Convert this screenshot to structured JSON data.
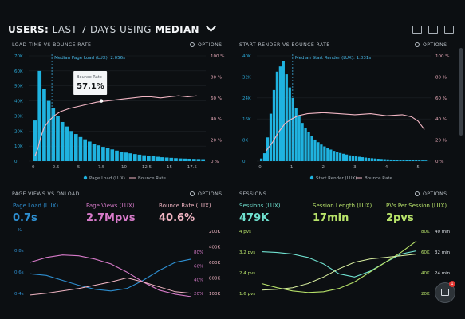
{
  "header": {
    "part1": "USERS:",
    "part2": "LAST 7 DAYS",
    "part3": "USING",
    "part4": "MEDIAN"
  },
  "panels": {
    "load_time": {
      "title": "LOAD TIME VS BOUNCE RATE",
      "options": "OPTIONS",
      "median_label": "Median Page Load (LUX): 2.056s",
      "tooltip_label": "Bounce Rate",
      "tooltip_value": "57.1%",
      "legend_1": "Page Load (LUX)",
      "legend_2": "Bounce Rate"
    },
    "start_render": {
      "title": "START RENDER VS BOUNCE RATE",
      "options": "OPTIONS",
      "median_label": "Median Start Render (LUX): 1.031s",
      "legend_1": "Start Render (LUX)",
      "legend_2": "Bounce Rate"
    },
    "page_views": {
      "title": "PAGE VIEWS VS ONLOAD",
      "options": "OPTIONS",
      "m1_label": "Page Load (LUX)",
      "m1_value": "0.7s",
      "m2_label": "Page Views (LUX)",
      "m2_value": "2.7Mpvs",
      "m3_label": "Bounce Rate (LUX)",
      "m3_value": "40.6%"
    },
    "sessions": {
      "title": "SESSIONS",
      "options": "OPTIONS",
      "m1_label": "Sessions (LUX)",
      "m1_value": "479K",
      "m2_label": "Session Length (LUX)",
      "m2_value": "17min",
      "m3_label": "PVs Per Session (LUX)",
      "m3_value": "2pvs"
    }
  },
  "colors": {
    "bar": "#1fb3e0",
    "bounce": "#f2b6c4",
    "pv_blue": "#2e8fd1",
    "pv_pink": "#d77ac9",
    "s_green": "#b8e36a",
    "s_teal": "#6fe0cf"
  },
  "chart_data": [
    {
      "type": "bar",
      "name": "load-time-vs-bounce-rate",
      "x_ticks": [
        "0",
        "2.5",
        "5",
        "7.5",
        "10",
        "12.5",
        "15",
        "17.5"
      ],
      "y_left_ticks": [
        "0",
        "10K",
        "20K",
        "30K",
        "40K",
        "50K",
        "60K",
        "70K"
      ],
      "y_right_ticks": [
        "0 %",
        "20 %",
        "40 %",
        "60 %",
        "80 %",
        "100 %"
      ],
      "ylim_left": [
        0,
        70000
      ],
      "ylim_right": [
        0,
        100
      ],
      "xlim": [
        -0.5,
        19
      ],
      "bar_x_start": 0,
      "bar_x_step": 0.5,
      "bar_values": [
        27000,
        60000,
        48000,
        40000,
        35000,
        30000,
        26000,
        23000,
        20000,
        18000,
        16000,
        14500,
        13000,
        11500,
        10500,
        9500,
        8500,
        7800,
        7000,
        6300,
        5700,
        5200,
        4700,
        4300,
        3900,
        3500,
        3200,
        2900,
        2600,
        2400,
        2200,
        2000,
        1800,
        1700,
        1600,
        1500,
        1400,
        1300
      ],
      "bounce_x": [
        0.2,
        0.5,
        0.8,
        1.2,
        1.7,
        2.3,
        3,
        4,
        5,
        6,
        7,
        8,
        9,
        10,
        11,
        12,
        13,
        14,
        15,
        16,
        17,
        18
      ],
      "bounce_y": [
        5,
        12,
        22,
        32,
        38,
        43,
        47,
        50,
        52,
        54,
        56,
        57,
        58,
        59,
        60,
        61,
        61,
        60,
        61,
        62,
        61,
        62
      ],
      "median_x": 2.056
    },
    {
      "type": "bar",
      "name": "start-render-vs-bounce-rate",
      "x_ticks": [
        "0",
        "1",
        "2",
        "3",
        "4",
        "5"
      ],
      "y_left_ticks": [
        "0",
        "8K",
        "16K",
        "24K",
        "32K",
        "40K"
      ],
      "y_right_ticks": [
        "0 %",
        "20 %",
        "40 %",
        "60 %",
        "80 %",
        "100 %"
      ],
      "ylim_left": [
        0,
        40000
      ],
      "ylim_right": [
        0,
        100
      ],
      "xlim": [
        -0.1,
        5.4
      ],
      "bar_x_start": 0,
      "bar_x_step": 0.1,
      "bar_values": [
        1000,
        3000,
        9000,
        18000,
        27000,
        34000,
        36000,
        38000,
        33000,
        28000,
        24000,
        20000,
        17000,
        14500,
        12500,
        11000,
        9500,
        8200,
        7200,
        6300,
        5600,
        5000,
        4400,
        3900,
        3500,
        3100,
        2800,
        2500,
        2200,
        2000,
        1800,
        1650,
        1500,
        1350,
        1200,
        1100,
        1000,
        900,
        820,
        750,
        680,
        620,
        560,
        520,
        480,
        440,
        400,
        370,
        340,
        310,
        280,
        260,
        240
      ],
      "bounce_x": [
        0.2,
        0.4,
        0.6,
        0.8,
        1.0,
        1.2,
        1.5,
        2,
        2.5,
        3,
        3.5,
        4,
        4.5,
        4.8,
        5.0,
        5.2
      ],
      "bounce_y": [
        10,
        18,
        28,
        36,
        40,
        43,
        45,
        46,
        45,
        44,
        45,
        43,
        44,
        42,
        38,
        30
      ],
      "median_x": 1.031
    },
    {
      "type": "line",
      "name": "page-views-vs-onload",
      "y_left_ticks": [
        "0.4s",
        "0.6s",
        "0.8s"
      ],
      "y_left_unit": "%",
      "y_right_pct_ticks": [
        "20%",
        "40%",
        "60%",
        "80%"
      ],
      "y_right_k_ticks": [
        "200K",
        "400K",
        "600K",
        "800K",
        "100K"
      ],
      "series": [
        {
          "name": "Page Load (LUX)",
          "x": [
            0,
            1,
            2,
            3,
            4,
            5,
            6,
            7,
            8,
            9,
            10
          ],
          "y": [
            30,
            28,
            22,
            16,
            11,
            9,
            12,
            22,
            34,
            44,
            48
          ]
        },
        {
          "name": "Page Views (LUX)",
          "x": [
            0,
            1,
            2,
            3,
            4,
            5,
            6,
            7,
            8,
            9,
            10
          ],
          "y": [
            44,
            50,
            53,
            52,
            48,
            42,
            32,
            20,
            10,
            5,
            2
          ]
        }
      ]
    },
    {
      "type": "line",
      "name": "sessions",
      "y_left_ticks": [
        "1.6 pvs",
        "2.4 pvs",
        "3.2 pvs",
        "4 pvs"
      ],
      "y_right_k_ticks": [
        "20K",
        "40K",
        "60K",
        "80K"
      ],
      "y_right_min_ticks": [
        "24 min",
        "32 min",
        "40 min"
      ],
      "series": [
        {
          "name": "Sessions (LUX)",
          "x": [
            0,
            1,
            2,
            3,
            4,
            5,
            6,
            7,
            8,
            9,
            10
          ],
          "y": [
            57,
            56,
            54,
            50,
            42,
            30,
            26,
            33,
            44,
            54,
            58
          ]
        },
        {
          "name": "PVs Per Session (LUX)",
          "x": [
            0,
            1,
            2,
            3,
            4,
            5,
            6,
            7,
            8,
            9,
            10
          ],
          "y": [
            18,
            13,
            9,
            7,
            8,
            12,
            20,
            32,
            44,
            56,
            70
          ]
        }
      ]
    }
  ]
}
